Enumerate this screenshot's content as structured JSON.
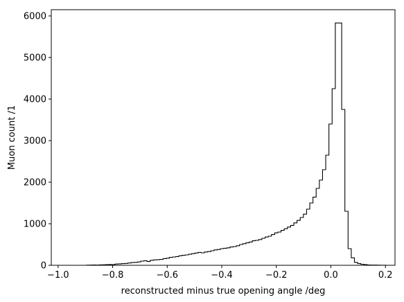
{
  "chart_data": {
    "type": "histogram",
    "xlabel": "reconstructed minus true opening angle /deg",
    "ylabel": "Muon count /1",
    "xlim": [
      -1.025,
      0.235
    ],
    "ylim": [
      0,
      6150
    ],
    "xticks": [
      -1.0,
      -0.8,
      -0.6,
      -0.4,
      -0.2,
      0.0,
      0.2
    ],
    "xtick_labels": [
      "−1.0",
      "−0.8",
      "−0.6",
      "−0.4",
      "−0.2",
      "0.0",
      "0.2"
    ],
    "yticks": [
      0,
      1000,
      2000,
      3000,
      4000,
      5000,
      6000
    ],
    "ytick_labels": [
      "0",
      "1000",
      "2000",
      "3000",
      "4000",
      "5000",
      "6000"
    ],
    "grid": false,
    "bin_start": -0.99,
    "bin_width": 0.0117,
    "counts": [
      0,
      0,
      0,
      0,
      0,
      0,
      0,
      0,
      3,
      5,
      8,
      5,
      10,
      12,
      15,
      18,
      15,
      30,
      35,
      40,
      45,
      55,
      65,
      70,
      80,
      100,
      110,
      90,
      120,
      130,
      135,
      140,
      160,
      170,
      190,
      200,
      210,
      230,
      240,
      250,
      265,
      280,
      295,
      310,
      300,
      320,
      330,
      350,
      370,
      380,
      400,
      410,
      420,
      440,
      450,
      470,
      500,
      520,
      540,
      560,
      590,
      600,
      620,
      650,
      680,
      700,
      740,
      780,
      800,
      840,
      880,
      920,
      960,
      1020,
      1080,
      1150,
      1230,
      1350,
      1500,
      1640,
      1850,
      2050,
      2300,
      2650,
      3400,
      4250,
      5830,
      5830,
      3750,
      1300,
      400,
      180,
      70,
      40,
      25,
      15,
      8,
      6,
      5,
      3,
      2,
      1,
      0,
      0
    ],
    "series_color": "#000000"
  }
}
